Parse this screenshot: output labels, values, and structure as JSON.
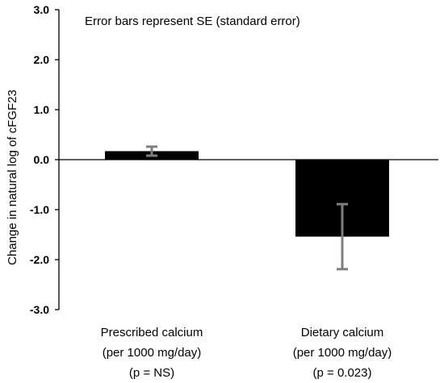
{
  "chart_data": {
    "type": "bar",
    "title": "",
    "annotation": "Error bars represent SE (standard error)",
    "xlabel": "",
    "ylabel": "Change in natural log of cFGF23",
    "ylim": [
      -3.0,
      3.0
    ],
    "yticks": [
      "3.0",
      "2.0",
      "1.0",
      "0.0",
      "-1.0",
      "-2.0",
      "-3.0"
    ],
    "ytick_values": [
      3.0,
      2.0,
      1.0,
      0.0,
      -1.0,
      -2.0,
      -3.0
    ],
    "categories": [
      [
        "Prescribed calcium",
        "(per 1000 mg/day)",
        "(p = NS)"
      ],
      [
        "Dietary calcium",
        "(per 1000 mg/day)",
        "(p = 0.023)"
      ]
    ],
    "values": [
      0.17,
      -1.54
    ],
    "error": [
      0.09,
      0.65
    ],
    "grid": false,
    "legend": "none",
    "colors": {
      "bar": "#000000",
      "error_bar": "#7f7f7f",
      "axis": "#000000"
    }
  }
}
